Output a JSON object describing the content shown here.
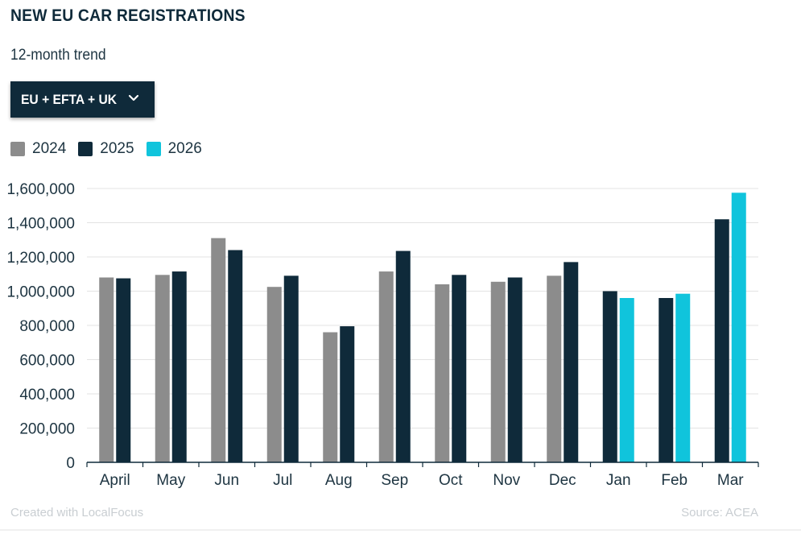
{
  "header": {
    "title": "NEW EU CAR REGISTRATIONS",
    "subtitle": "12-month trend"
  },
  "filter": {
    "selected": "EU + EFTA + UK",
    "icon": "chevron-down-icon"
  },
  "colors": {
    "2024": "#8c8c8c",
    "2025": "#0f2a3a",
    "2026": "#10c4dc",
    "grid": "#e3e3e3",
    "axis": "#0f2a3a"
  },
  "footer": {
    "credit": "Created with LocalFocus",
    "source": "Source:  ACEA"
  },
  "chart_data": {
    "type": "bar",
    "title": "NEW EU CAR REGISTRATIONS",
    "subtitle": "12-month trend",
    "categories": [
      "April",
      "May",
      "Jun",
      "Jul",
      "Aug",
      "Sep",
      "Oct",
      "Nov",
      "Dec",
      "Jan",
      "Feb",
      "Mar"
    ],
    "series": [
      {
        "name": "2024",
        "values": [
          1080000,
          1095000,
          1310000,
          1025000,
          760000,
          1115000,
          1040000,
          1055000,
          1090000,
          null,
          null,
          null
        ]
      },
      {
        "name": "2025",
        "values": [
          1075000,
          1115000,
          1240000,
          1090000,
          795000,
          1235000,
          1095000,
          1080000,
          1170000,
          1000000,
          960000,
          1420000
        ]
      },
      {
        "name": "2026",
        "values": [
          null,
          null,
          null,
          null,
          null,
          null,
          null,
          null,
          null,
          960000,
          985000,
          1575000
        ]
      }
    ],
    "ylim": [
      0,
      1600000
    ],
    "yticks": [
      0,
      200000,
      400000,
      600000,
      800000,
      1000000,
      1200000,
      1400000,
      1600000
    ],
    "ytick_labels": [
      "0",
      "200,000",
      "400,000",
      "600,000",
      "800,000",
      "1,000,000",
      "1,200,000",
      "1,400,000",
      "1,600,000"
    ],
    "grid": true,
    "legend_position": "top-left",
    "xlabel": "",
    "ylabel": ""
  }
}
